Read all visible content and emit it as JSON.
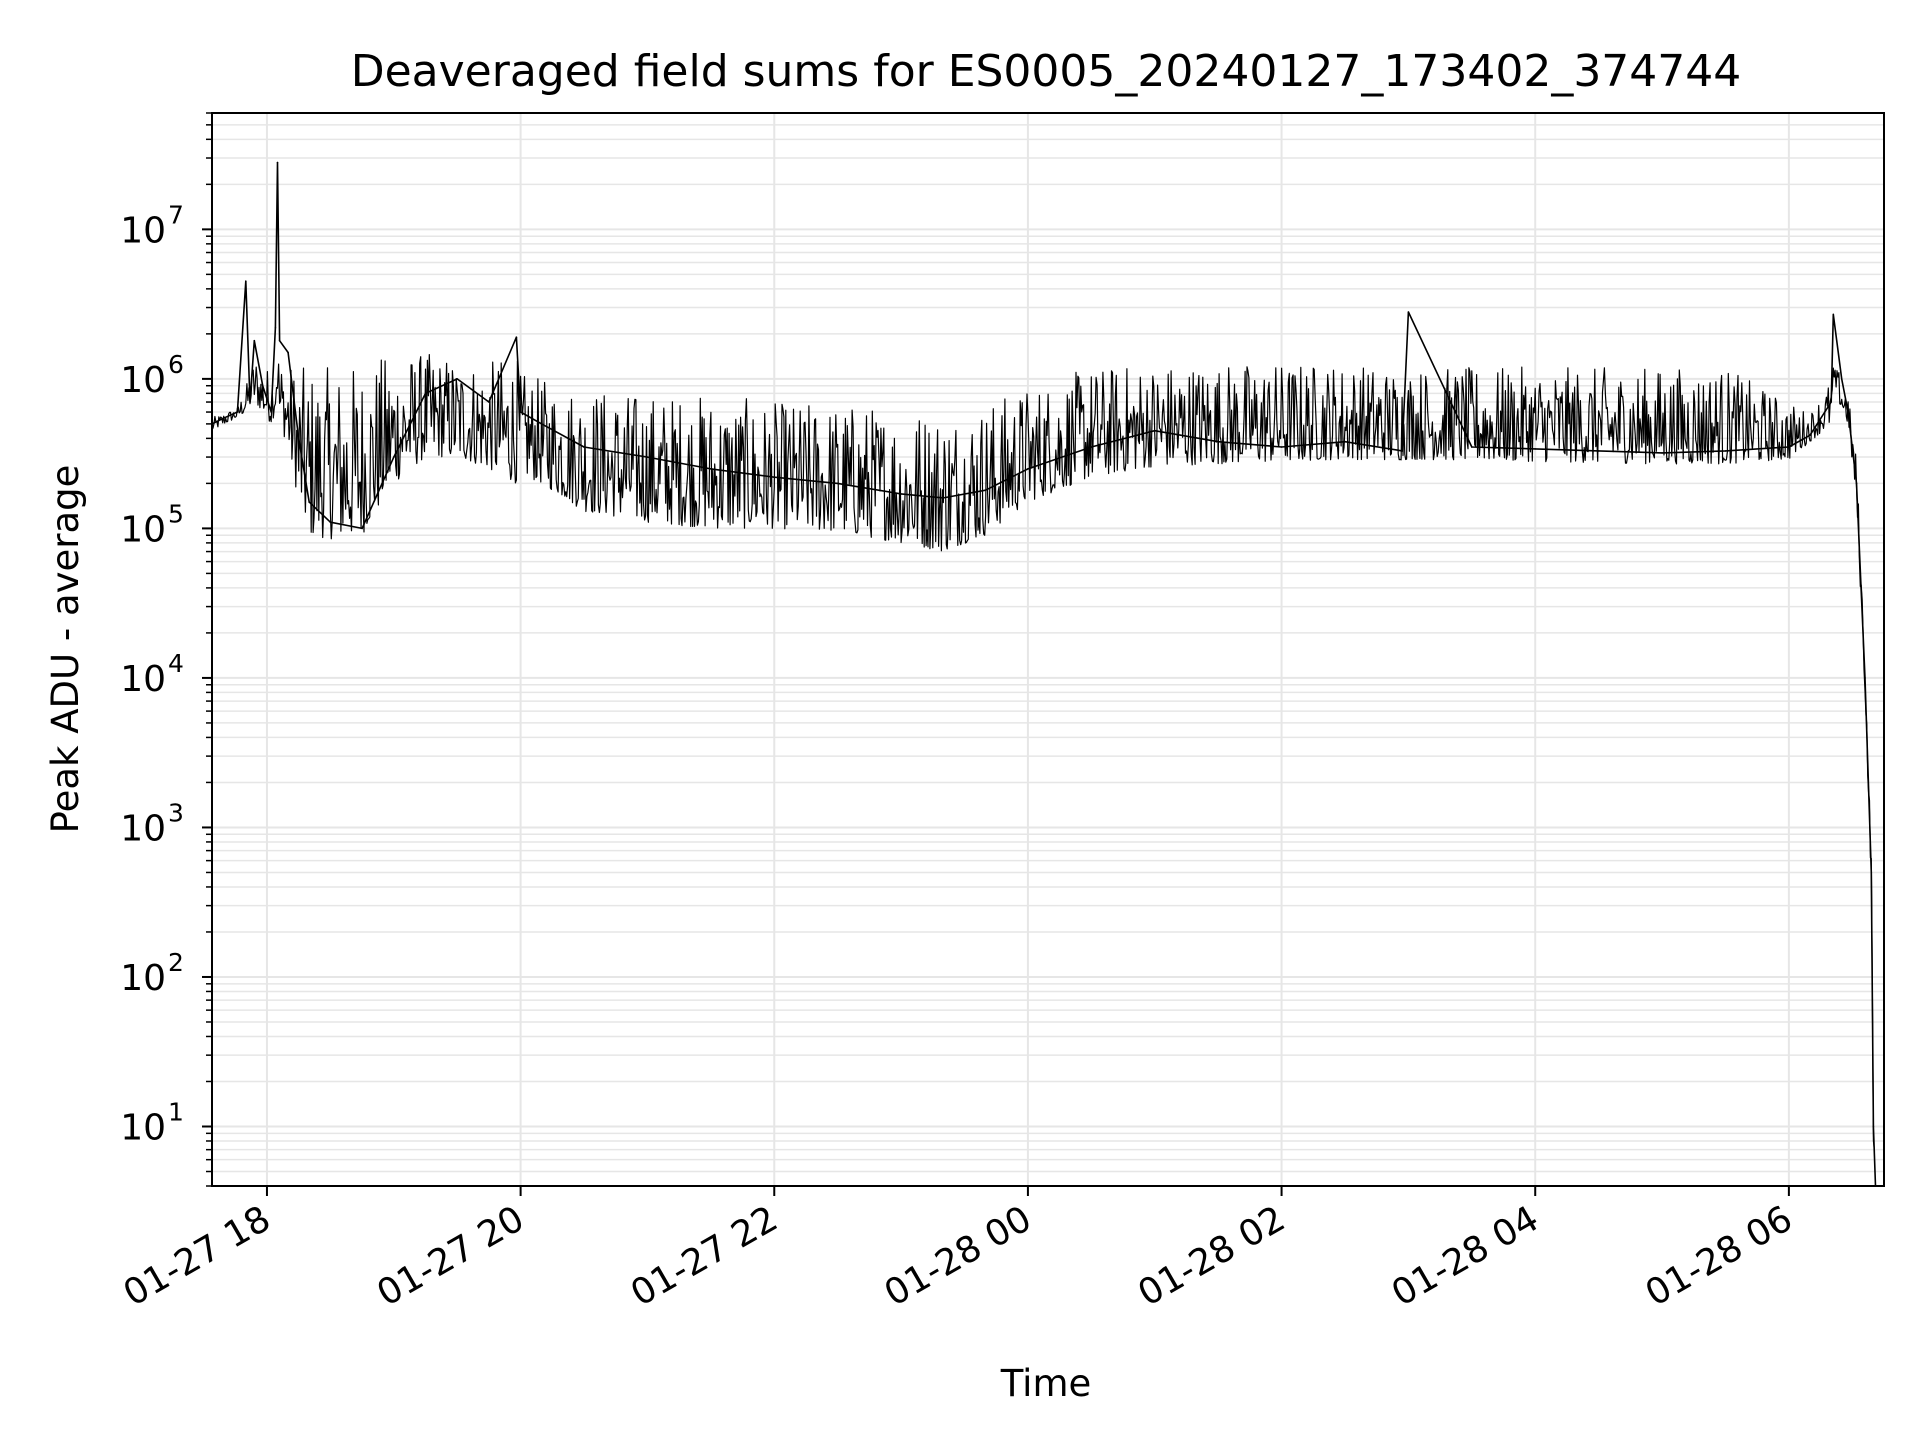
{
  "chart_data": {
    "type": "line",
    "title": "Deaveraged field sums for ES0005_20240127_173402_374744",
    "xlabel": "Time",
    "ylabel": "Peak ADU - average",
    "y_scale": "log",
    "ylim": [
      4,
      60000000
    ],
    "xlim": [
      "2024-01-27 17:34",
      "2024-01-28 06:45"
    ],
    "x_ticks": [
      {
        "value": "2024-01-27 18:00",
        "label": "01-27 18"
      },
      {
        "value": "2024-01-27 20:00",
        "label": "01-27 20"
      },
      {
        "value": "2024-01-27 22:00",
        "label": "01-27 22"
      },
      {
        "value": "2024-01-28 00:00",
        "label": "01-28 00"
      },
      {
        "value": "2024-01-28 02:00",
        "label": "01-28 02"
      },
      {
        "value": "2024-01-28 04:00",
        "label": "01-28 04"
      },
      {
        "value": "2024-01-28 06:00",
        "label": "01-28 06"
      }
    ],
    "y_ticks": [
      {
        "value": 10,
        "base": "10",
        "exp": "1"
      },
      {
        "value": 100,
        "base": "10",
        "exp": "2"
      },
      {
        "value": 1000,
        "base": "10",
        "exp": "3"
      },
      {
        "value": 10000,
        "base": "10",
        "exp": "4"
      },
      {
        "value": 100000,
        "base": "10",
        "exp": "5"
      },
      {
        "value": 1000000,
        "base": "10",
        "exp": "6"
      },
      {
        "value": 10000000,
        "base": "10",
        "exp": "7"
      }
    ],
    "grid": true,
    "line_color": "#000000",
    "grid_color": "#e6e6e6",
    "series": [
      {
        "x": [
          "2024-01-27 17:34",
          "2024-01-27 17:40",
          "2024-01-27 17:46",
          "2024-01-27 17:50",
          "2024-01-27 17:52",
          "2024-01-27 17:54",
          "2024-01-27 17:58",
          "2024-01-27 18:02",
          "2024-01-27 18:04",
          "2024-01-27 18:05",
          "2024-01-27 18:06",
          "2024-01-27 18:10",
          "2024-01-27 18:15",
          "2024-01-27 18:20",
          "2024-01-27 18:30",
          "2024-01-27 18:45",
          "2024-01-27 19:00",
          "2024-01-27 19:15",
          "2024-01-27 19:30",
          "2024-01-27 19:45",
          "2024-01-27 19:58",
          "2024-01-27 20:00",
          "2024-01-27 20:10",
          "2024-01-27 20:30",
          "2024-01-27 21:00",
          "2024-01-27 21:30",
          "2024-01-27 22:00",
          "2024-01-27 22:30",
          "2024-01-27 23:00",
          "2024-01-27 23:20",
          "2024-01-27 23:40",
          "2024-01-28 00:00",
          "2024-01-28 00:30",
          "2024-01-28 01:00",
          "2024-01-28 01:30",
          "2024-01-28 02:00",
          "2024-01-28 02:30",
          "2024-01-28 02:57",
          "2024-01-28 03:00",
          "2024-01-28 03:30",
          "2024-01-28 04:00",
          "2024-01-28 04:30",
          "2024-01-28 05:00",
          "2024-01-28 05:30",
          "2024-01-28 06:00",
          "2024-01-28 06:10",
          "2024-01-28 06:20",
          "2024-01-28 06:21",
          "2024-01-28 06:25",
          "2024-01-28 06:28",
          "2024-01-28 06:32",
          "2024-01-28 06:36",
          "2024-01-28 06:39",
          "2024-01-28 06:40",
          "2024-01-28 06:41"
        ],
        "y": [
          500000,
          550000,
          600000,
          4500000,
          700000,
          1800000,
          900000,
          600000,
          2200000,
          28000000,
          1800000,
          1500000,
          400000,
          150000,
          110000,
          100000,
          300000,
          800000,
          1000000,
          700000,
          1900000,
          600000,
          500000,
          350000,
          300000,
          250000,
          220000,
          200000,
          170000,
          160000,
          180000,
          250000,
          350000,
          450000,
          380000,
          350000,
          380000,
          330000,
          2800000,
          350000,
          340000,
          330000,
          320000,
          330000,
          350000,
          420000,
          700000,
          2700000,
          1000000,
          600000,
          200000,
          10000,
          500,
          10,
          4
        ],
        "band_low": [
          450000,
          500000,
          550000,
          600000,
          650000,
          700000,
          600000,
          500000,
          600000,
          800000,
          500000,
          350000,
          150000,
          90000,
          85000,
          90000,
          200000,
          300000,
          300000,
          250000,
          200000,
          230000,
          200000,
          130000,
          110000,
          100000,
          100000,
          95000,
          80000,
          70000,
          90000,
          150000,
          220000,
          260000,
          270000,
          280000,
          290000,
          285000,
          290000,
          285000,
          280000,
          275000,
          270000,
          270000,
          290000,
          380000,
          500000,
          1000000,
          600000,
          500000,
          150000,
          8000,
          400,
          8,
          4
        ],
        "band_high": [
          550000,
          600000,
          650000,
          900000,
          1100000,
          1500000,
          1200000,
          1200000,
          1600000,
          2000000,
          1400000,
          1300000,
          1200000,
          1200000,
          1200000,
          1300000,
          1500000,
          1500000,
          1400000,
          1300000,
          1500000,
          1100000,
          1000000,
          900000,
          800000,
          800000,
          700000,
          700000,
          650000,
          650000,
          700000,
          900000,
          1200000,
          1300000,
          1300000,
          1300000,
          1300000,
          1200000,
          1200000,
          1200000,
          1200000,
          1200000,
          1200000,
          1200000,
          700000,
          600000,
          1000000,
          1200000,
          1100000,
          800000,
          300000,
          15000,
          700,
          15,
          4
        ]
      }
    ]
  }
}
